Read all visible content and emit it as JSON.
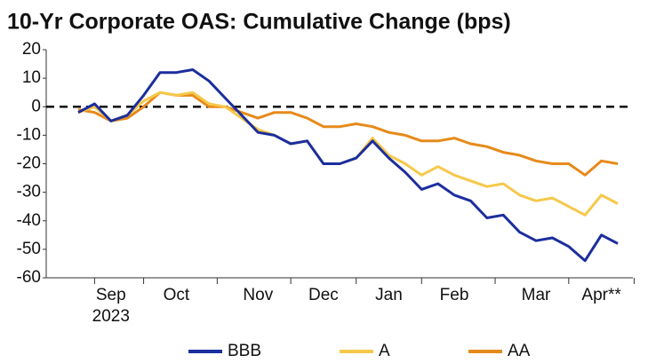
{
  "chart_data": {
    "type": "line",
    "title": "10-Yr Corporate OAS: Cumulative Change (bps)",
    "categories": [
      null,
      null,
      "Sep",
      null,
      null,
      null,
      "Oct",
      null,
      null,
      null,
      null,
      "Nov",
      null,
      null,
      null,
      "Dec",
      null,
      null,
      null,
      "Jan",
      null,
      null,
      null,
      "Feb",
      null,
      null,
      null,
      null,
      "Mar",
      null,
      null,
      null,
      "Apr**",
      null
    ],
    "x_sublabel": "2023",
    "series": [
      {
        "name": "BBB",
        "color": "#1b2e9e",
        "values": [
          -2,
          1,
          -5,
          -3,
          4,
          12,
          12,
          13,
          9,
          3,
          -3,
          -9,
          -10,
          -13,
          -12,
          -20,
          -20,
          -18,
          -12,
          -18,
          -23,
          -29,
          -27,
          -31,
          -33,
          -39,
          -38,
          -44,
          -47,
          -46,
          -49,
          -54,
          -45,
          -48
        ]
      },
      {
        "name": "A",
        "color": "#f6c84a",
        "values": [
          -2,
          0,
          -5,
          -3,
          2,
          5,
          4,
          5,
          1,
          0,
          -4,
          -8,
          -10,
          -13,
          -12,
          -20,
          -20,
          -18,
          -11,
          -17,
          -20,
          -24,
          -21,
          -24,
          -26,
          -28,
          -27,
          -31,
          -33,
          -32,
          -35,
          -38,
          -31,
          -34
        ]
      },
      {
        "name": "AA",
        "color": "#e68a1a",
        "values": [
          -1,
          -2,
          -5,
          -4,
          0,
          5,
          4,
          4,
          0,
          0,
          -2,
          -4,
          -2,
          -2,
          -4,
          -7,
          -7,
          -6,
          -7,
          -9,
          -10,
          -12,
          -12,
          -11,
          -13,
          -14,
          -16,
          -17,
          -19,
          -20,
          -20,
          -24,
          -19,
          -20
        ]
      }
    ],
    "ylim": [
      -60,
      20
    ],
    "yticks": [
      -60,
      -50,
      -40,
      -30,
      -20,
      -10,
      0,
      10,
      20
    ],
    "reference_line": 0,
    "legend": "bottom"
  }
}
